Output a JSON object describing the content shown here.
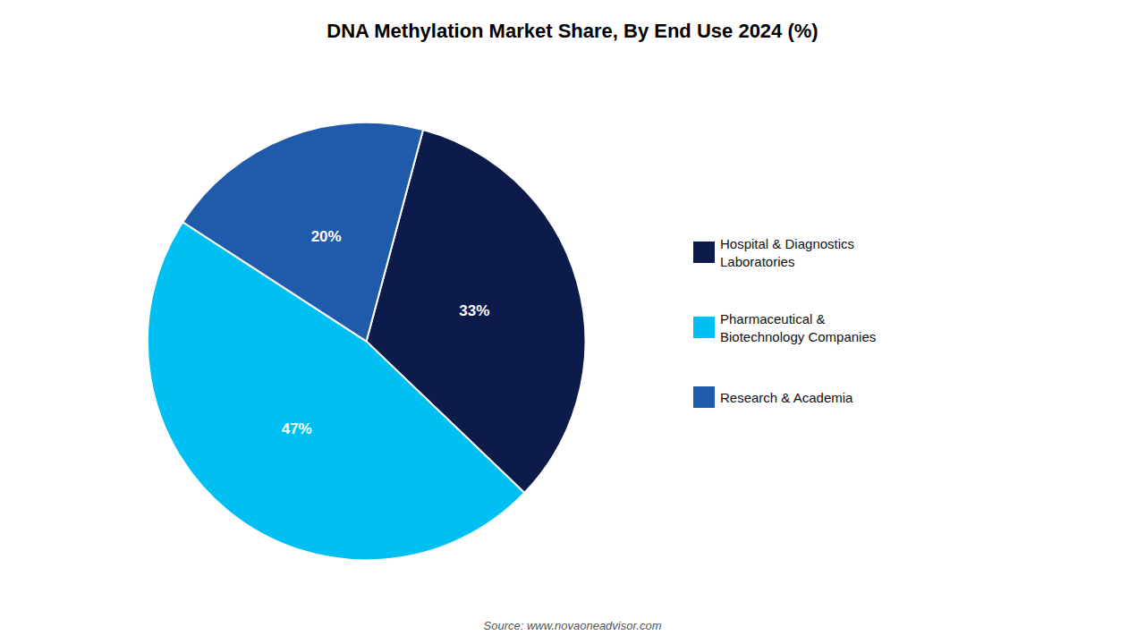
{
  "chart_data": {
    "type": "pie",
    "title": "DNA Methylation Market Share, By End Use 2024 (%)",
    "categories": [
      "Hospital & Diagnostics\nLaboratories",
      "Pharmaceutical &\nBiotechnology Companies",
      "Research & Academia"
    ],
    "values": [
      33,
      47,
      20
    ],
    "value_labels": [
      "33%",
      "47%",
      "20%"
    ],
    "colors": [
      "#0d1b4b",
      "#00c0f3",
      "#1f5aab"
    ],
    "data_labels": true,
    "legend": "right",
    "annotations": [
      "Source: www.novaoneadvisor.com"
    ]
  }
}
